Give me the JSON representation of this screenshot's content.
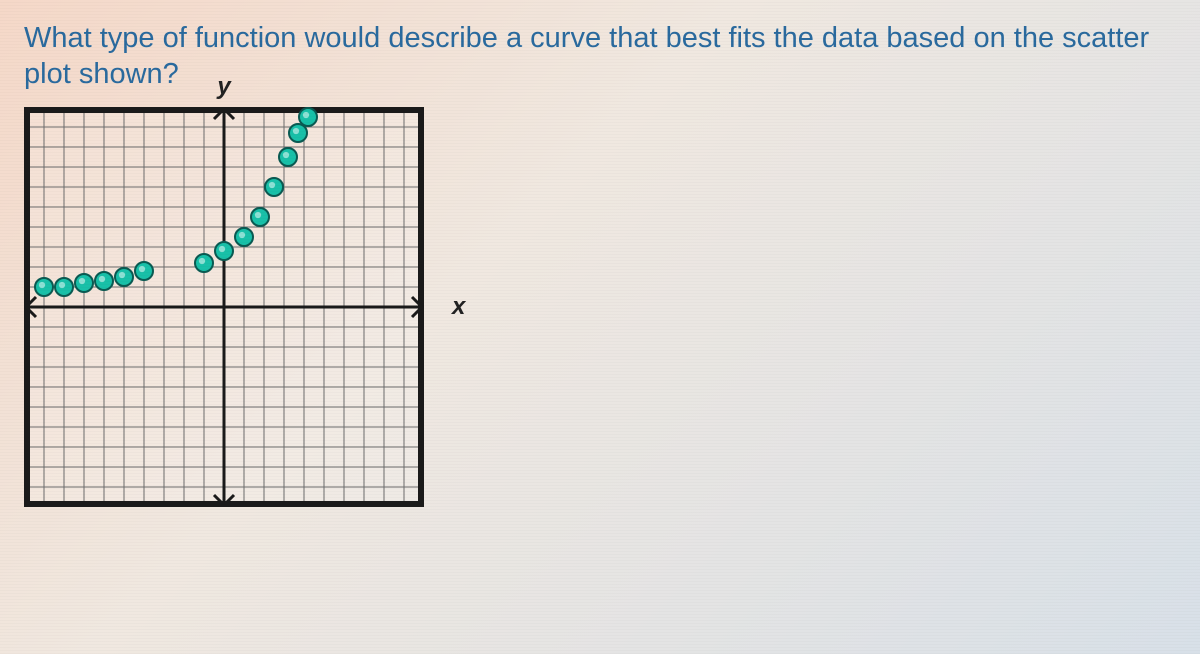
{
  "question": {
    "text": "What type of function would describe a curve that best fits the data based on the scatter plot shown?",
    "color": "#2a6a9e",
    "fontsize": 29
  },
  "chart": {
    "type": "scatter",
    "y_label": "y",
    "x_label": "x",
    "svg_size": 400,
    "xlim": [
      -10,
      10
    ],
    "ylim": [
      -10,
      10
    ],
    "tick_step": 1,
    "background_color": "rgba(255,255,255,0.15)",
    "grid_color": "#6b6b6b",
    "frame_color": "#1a1a1a",
    "axis_color": "#1a1a1a",
    "point_fill": "#18c0a8",
    "point_stroke": "#0a5a52",
    "point_radius": 9,
    "point_stroke_width": 2,
    "points": [
      {
        "x": -9,
        "y": 1
      },
      {
        "x": -8,
        "y": 1
      },
      {
        "x": -7,
        "y": 1.2
      },
      {
        "x": -6,
        "y": 1.3
      },
      {
        "x": -5,
        "y": 1.5
      },
      {
        "x": -4,
        "y": 1.8
      },
      {
        "x": -1,
        "y": 2.2
      },
      {
        "x": 0,
        "y": 2.8
      },
      {
        "x": 1,
        "y": 3.5
      },
      {
        "x": 1.8,
        "y": 4.5
      },
      {
        "x": 2.5,
        "y": 6.0
      },
      {
        "x": 3.2,
        "y": 7.5
      },
      {
        "x": 3.7,
        "y": 8.7
      },
      {
        "x": 4.2,
        "y": 9.5
      }
    ]
  }
}
